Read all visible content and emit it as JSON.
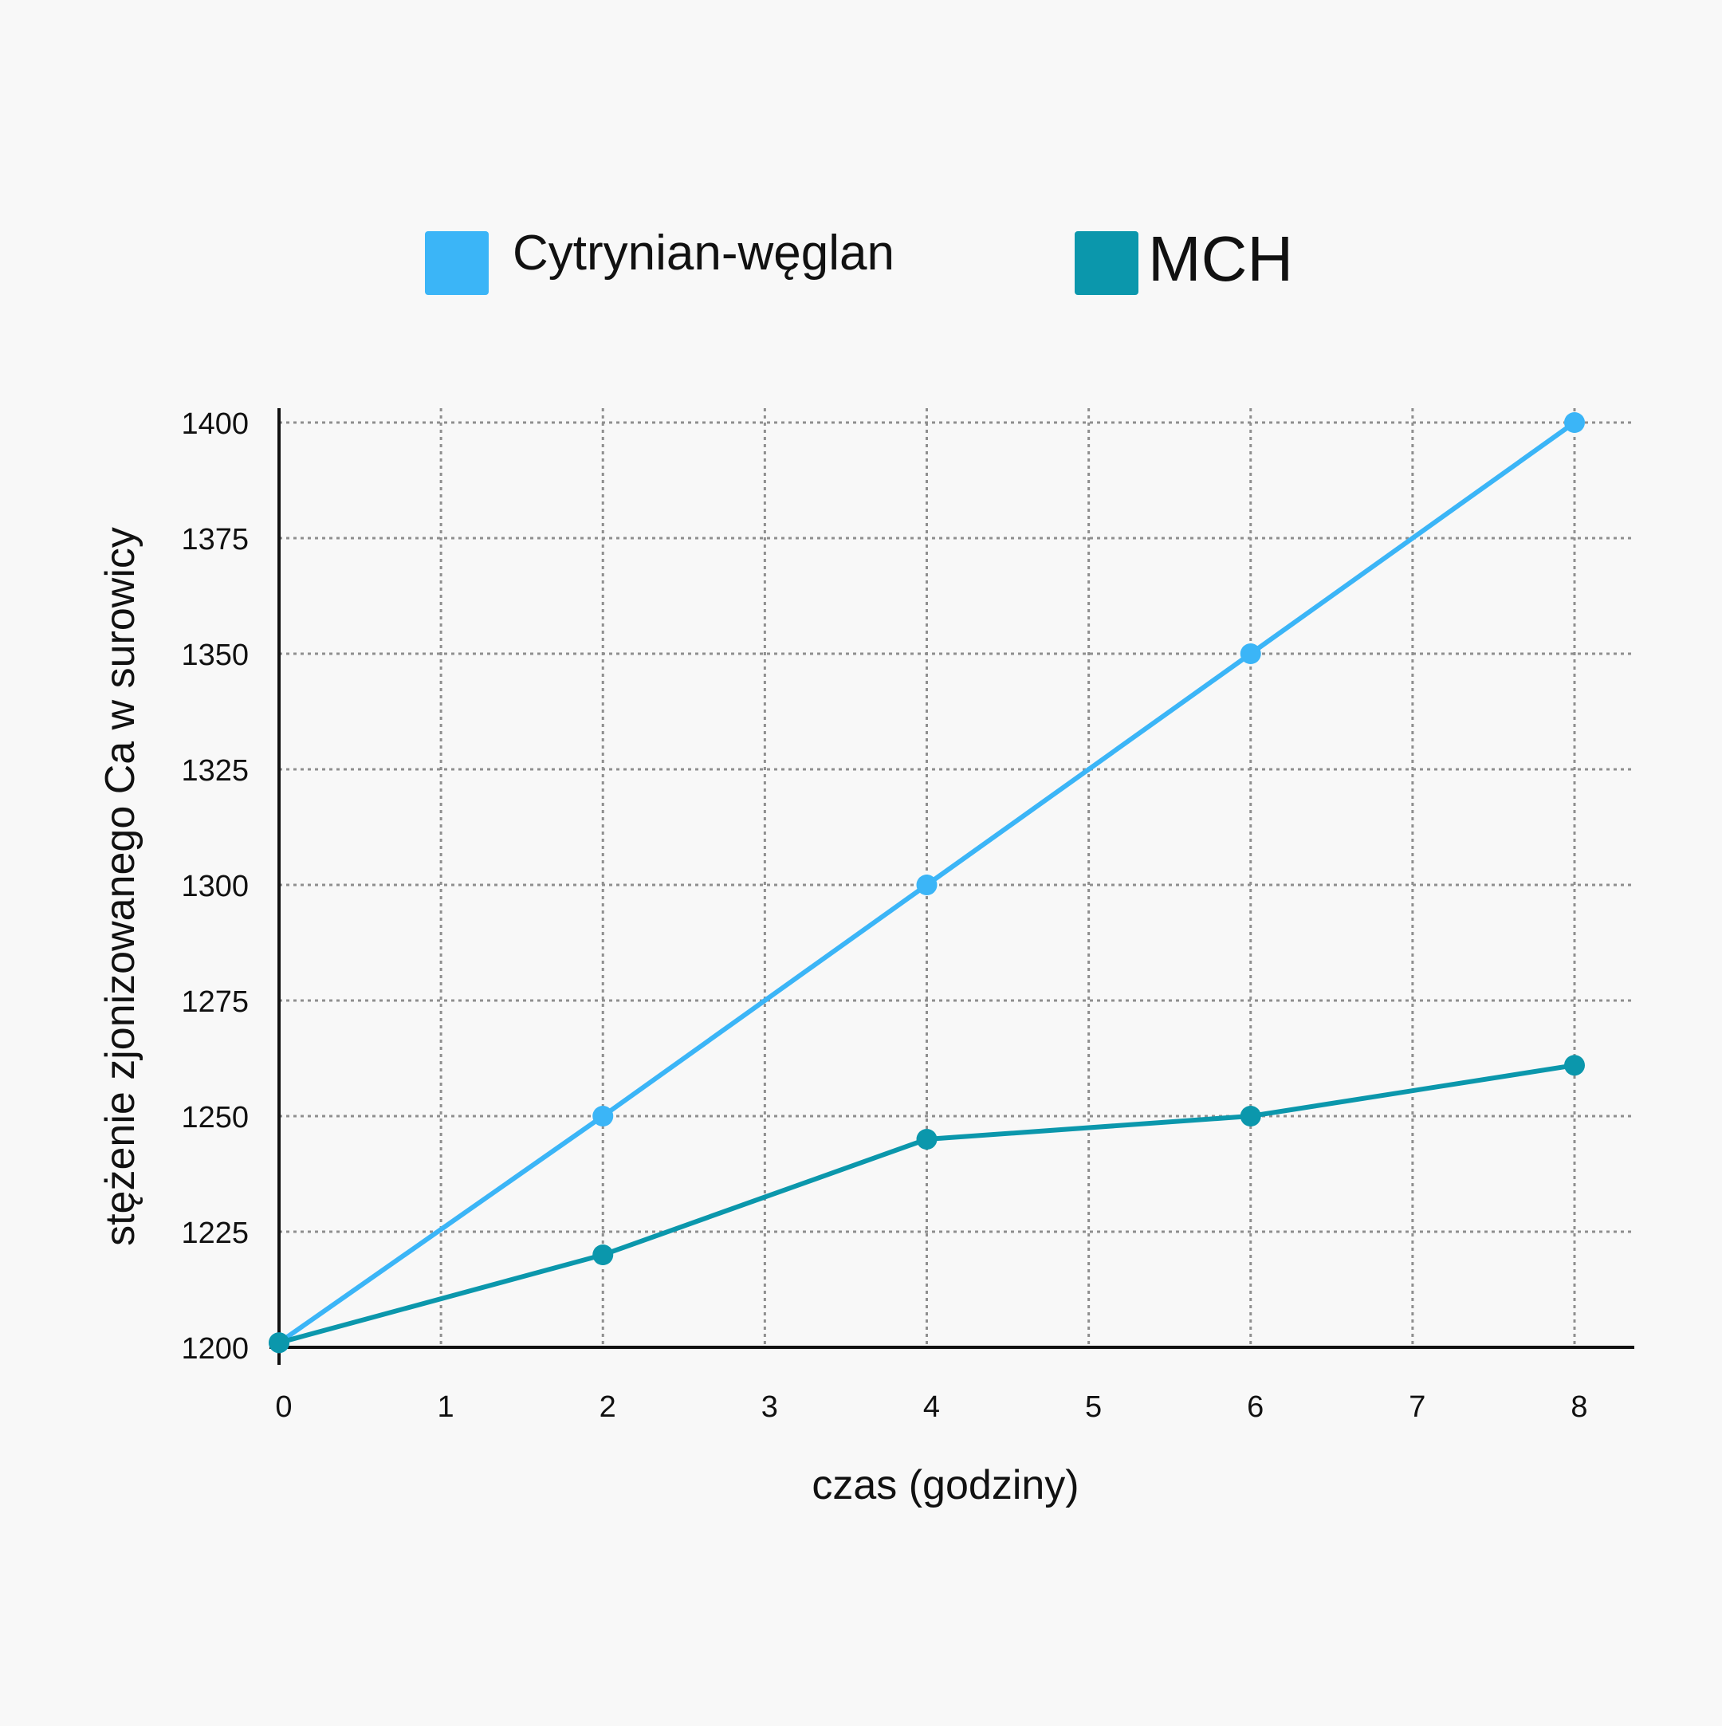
{
  "chart_data": {
    "type": "line",
    "xlabel": "czas (godziny)",
    "ylabel": "stężenie zjonizowanego Ca w surowicy",
    "xlim": [
      0,
      8
    ],
    "ylim": [
      1200,
      1400
    ],
    "x_ticks": [
      0,
      1,
      2,
      3,
      4,
      5,
      6,
      7,
      8
    ],
    "y_ticks": [
      1200,
      1225,
      1250,
      1275,
      1300,
      1325,
      1350,
      1375,
      1400
    ],
    "grid": true,
    "legend_position": "top",
    "series": [
      {
        "name": "Cytrynian-węglan",
        "color": "#3bb5f7",
        "x": [
          0,
          2,
          4,
          6,
          8
        ],
        "values": [
          1201,
          1250,
          1300,
          1350,
          1400
        ]
      },
      {
        "name": "MCH",
        "color": "#0b97ac",
        "x": [
          0,
          2,
          4,
          6,
          8
        ],
        "values": [
          1201,
          1220,
          1245,
          1250,
          1261
        ]
      }
    ]
  }
}
